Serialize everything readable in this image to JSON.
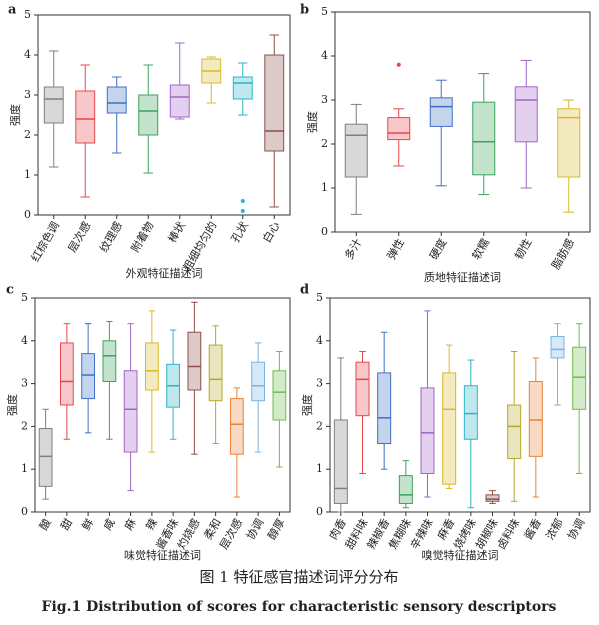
{
  "chart_data": [
    {
      "type": "box",
      "label": "a",
      "xlabel": "外观特征描述词",
      "ylabel": "强度",
      "ylim": [
        0,
        5
      ],
      "yticks": [
        0,
        1,
        2,
        3,
        4,
        5
      ],
      "boxes": [
        {
          "category": "红棕色调",
          "color": "#7f7f7f",
          "whisker_low": 1.2,
          "q1": 2.3,
          "median": 2.9,
          "q3": 3.2,
          "whisker_high": 4.1
        },
        {
          "category": "层次感",
          "color": "#e8474b",
          "whisker_low": 0.45,
          "q1": 1.8,
          "median": 2.4,
          "q3": 3.1,
          "whisker_high": 3.75
        },
        {
          "category": "纹理感",
          "color": "#3f6fc4",
          "whisker_low": 1.55,
          "q1": 2.55,
          "median": 2.8,
          "q3": 3.2,
          "whisker_high": 3.45
        },
        {
          "category": "附着物",
          "color": "#3aa35a",
          "whisker_low": 1.05,
          "q1": 2.0,
          "median": 2.6,
          "q3": 3.0,
          "whisker_high": 3.75
        },
        {
          "category": "棒状",
          "color": "#a165c7",
          "whisker_low": 2.4,
          "q1": 2.45,
          "median": 2.95,
          "q3": 3.25,
          "whisker_high": 4.3
        },
        {
          "category": "粗细均匀的",
          "color": "#d9b92a",
          "whisker_low": 2.8,
          "q1": 3.3,
          "median": 3.6,
          "q3": 3.9,
          "whisker_high": 3.95
        },
        {
          "category": "孔状",
          "color": "#2bb4c7",
          "whisker_low": 2.5,
          "q1": 2.9,
          "median": 3.3,
          "q3": 3.45,
          "whisker_high": 3.8,
          "outliers": [
            0.1,
            0.35
          ]
        },
        {
          "category": "白心",
          "color": "#8c4f4a",
          "whisker_low": 0.2,
          "q1": 1.6,
          "median": 2.1,
          "q3": 4.0,
          "whisker_high": 4.5
        }
      ]
    },
    {
      "type": "box",
      "label": "b",
      "xlabel": "质地特征描述词",
      "ylabel": "强度",
      "ylim": [
        0,
        5
      ],
      "yticks": [
        0,
        1,
        2,
        3,
        4,
        5
      ],
      "boxes": [
        {
          "category": "多汁",
          "color": "#7f7f7f",
          "whisker_low": 0.4,
          "q1": 1.25,
          "median": 2.2,
          "q3": 2.45,
          "whisker_high": 2.9
        },
        {
          "category": "弹性",
          "color": "#e8474b",
          "whisker_low": 1.5,
          "q1": 2.1,
          "median": 2.25,
          "q3": 2.6,
          "whisker_high": 2.8,
          "outliers": [
            3.8
          ]
        },
        {
          "category": "硬度",
          "color": "#3f6fc4",
          "whisker_low": 1.05,
          "q1": 2.4,
          "median": 2.85,
          "q3": 3.05,
          "whisker_high": 3.45
        },
        {
          "category": "软糯",
          "color": "#3aa35a",
          "whisker_low": 0.85,
          "q1": 1.3,
          "median": 2.05,
          "q3": 2.95,
          "whisker_high": 3.6
        },
        {
          "category": "韧性",
          "color": "#a165c7",
          "whisker_low": 1.0,
          "q1": 2.05,
          "median": 3.0,
          "q3": 3.3,
          "whisker_high": 3.9
        },
        {
          "category": "脂肪感",
          "color": "#d9b92a",
          "whisker_low": 0.45,
          "q1": 1.25,
          "median": 2.6,
          "q3": 2.8,
          "whisker_high": 3.0
        }
      ]
    },
    {
      "type": "box",
      "label": "c",
      "xlabel": "味觉特征描述词",
      "ylabel": "强度",
      "ylim": [
        0,
        5
      ],
      "yticks": [
        0,
        1,
        2,
        3,
        4,
        5
      ],
      "boxes": [
        {
          "category": "酸",
          "color": "#7f7f7f",
          "whisker_low": 0.3,
          "q1": 0.6,
          "median": 1.3,
          "q3": 1.95,
          "whisker_high": 2.4
        },
        {
          "category": "甜",
          "color": "#e8474b",
          "whisker_low": 1.7,
          "q1": 2.5,
          "median": 3.05,
          "q3": 3.95,
          "whisker_high": 4.4
        },
        {
          "category": "鲜",
          "color": "#3f6fc4",
          "whisker_low": 1.85,
          "q1": 2.65,
          "median": 3.2,
          "q3": 3.7,
          "whisker_high": 4.4
        },
        {
          "category": "咸",
          "color": "#3aa35a",
          "whisker_low": 1.7,
          "q1": 3.05,
          "median": 3.65,
          "q3": 4.0,
          "whisker_high": 4.45
        },
        {
          "category": "麻",
          "color": "#a165c7",
          "whisker_low": 0.5,
          "q1": 1.4,
          "median": 2.4,
          "q3": 3.3,
          "whisker_high": 4.4
        },
        {
          "category": "辣",
          "color": "#d9b92a",
          "whisker_low": 1.4,
          "q1": 2.85,
          "median": 3.3,
          "q3": 3.95,
          "whisker_high": 4.7
        },
        {
          "category": "酱香味",
          "color": "#2bb4c7",
          "whisker_low": 1.7,
          "q1": 2.45,
          "median": 2.95,
          "q3": 3.45,
          "whisker_high": 4.25
        },
        {
          "category": "灼烧感",
          "color": "#8c4f4a",
          "whisker_low": 1.35,
          "q1": 2.85,
          "median": 3.4,
          "q3": 4.2,
          "whisker_high": 4.9
        },
        {
          "category": "柔和",
          "color": "#b5a82a",
          "whisker_low": 1.6,
          "q1": 2.6,
          "median": 3.1,
          "q3": 3.9,
          "whisker_high": 4.35
        },
        {
          "category": "层次感",
          "color": "#e8823a",
          "whisker_low": 0.35,
          "q1": 1.35,
          "median": 2.05,
          "q3": 2.65,
          "whisker_high": 2.9
        },
        {
          "category": "协调",
          "color": "#7ab3e0",
          "whisker_low": 1.4,
          "q1": 2.6,
          "median": 2.95,
          "q3": 3.5,
          "whisker_high": 3.95
        },
        {
          "category": "醇厚",
          "color": "#6ebd4c",
          "whisker_low": 1.05,
          "q1": 2.15,
          "median": 2.8,
          "q3": 3.3,
          "whisker_high": 3.75
        }
      ]
    },
    {
      "type": "box",
      "label": "d",
      "xlabel": "嗅觉特征描述词",
      "ylabel": "强度",
      "ylim": [
        0,
        5
      ],
      "yticks": [
        0,
        1,
        2,
        3,
        4,
        5
      ],
      "boxes": [
        {
          "category": "肉香",
          "color": "#7f7f7f",
          "whisker_low": 0,
          "q1": 0.2,
          "median": 0.55,
          "q3": 2.15,
          "whisker_high": 3.6
        },
        {
          "category": "甜料味",
          "color": "#e8474b",
          "whisker_low": 0.9,
          "q1": 2.25,
          "median": 3.1,
          "q3": 3.5,
          "whisker_high": 3.75
        },
        {
          "category": "辣椒香",
          "color": "#3f6fc4",
          "whisker_low": 1.0,
          "q1": 1.6,
          "median": 2.2,
          "q3": 3.25,
          "whisker_high": 4.2
        },
        {
          "category": "焦糊味",
          "color": "#3aa35a",
          "whisker_low": 0.1,
          "q1": 0.2,
          "median": 0.4,
          "q3": 0.85,
          "whisker_high": 1.2
        },
        {
          "category": "辛辣味",
          "color": "#a165c7",
          "whisker_low": 0.35,
          "q1": 0.9,
          "median": 1.85,
          "q3": 2.9,
          "whisker_high": 4.7
        },
        {
          "category": "麻香",
          "color": "#d9b92a",
          "whisker_low": 0.55,
          "q1": 0.65,
          "median": 2.4,
          "q3": 3.25,
          "whisker_high": 3.9
        },
        {
          "category": "烧烤味",
          "color": "#2bb4c7",
          "whisker_low": 0.1,
          "q1": 1.7,
          "median": 2.3,
          "q3": 2.95,
          "whisker_high": 3.55
        },
        {
          "category": "胡椒味",
          "color": "#8c4f4a",
          "whisker_low": 0.2,
          "q1": 0.25,
          "median": 0.3,
          "q3": 0.4,
          "whisker_high": 0.5
        },
        {
          "category": "卤料味",
          "color": "#b5a82a",
          "whisker_low": 0.25,
          "q1": 1.25,
          "median": 2.0,
          "q3": 2.5,
          "whisker_high": 3.75
        },
        {
          "category": "酱香",
          "color": "#e8823a",
          "whisker_low": 0.35,
          "q1": 1.3,
          "median": 2.15,
          "q3": 3.05,
          "whisker_high": 3.6
        },
        {
          "category": "浓郁",
          "color": "#7ab3e0",
          "whisker_low": 2.5,
          "q1": 3.6,
          "median": 3.8,
          "q3": 4.1,
          "whisker_high": 4.4
        },
        {
          "category": "协调",
          "color": "#6ebd4c",
          "whisker_low": 0.9,
          "q1": 2.4,
          "median": 3.15,
          "q3": 3.85,
          "whisker_high": 4.4
        }
      ]
    }
  ],
  "caption": {
    "zh": "图 1 特征感官描述词评分分布",
    "en": "Fig.1 Distribution of scores for characteristic sensory descriptors"
  }
}
